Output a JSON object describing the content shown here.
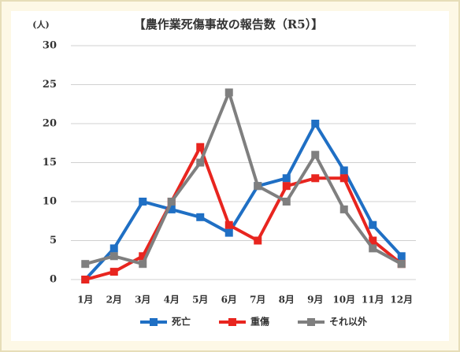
{
  "chart_data": {
    "type": "line",
    "title": "【農作業死傷事故の報告数（R5）】",
    "y_label": "(人)",
    "categories": [
      "1月",
      "2月",
      "3月",
      "4月",
      "5月",
      "6月",
      "7月",
      "8月",
      "9月",
      "10月",
      "11月",
      "12月"
    ],
    "series": [
      {
        "name": "死亡",
        "color": "#1f6fc4",
        "values": [
          0,
          4,
          10,
          9,
          8,
          6,
          12,
          13,
          20,
          14,
          7,
          3
        ]
      },
      {
        "name": "重傷",
        "color": "#e8251f",
        "values": [
          0,
          1,
          3,
          10,
          17,
          7,
          5,
          12,
          13,
          13,
          5,
          2
        ]
      },
      {
        "name": "それ以外",
        "color": "#7f7f7f",
        "values": [
          2,
          3,
          2,
          10,
          15,
          24,
          12,
          10,
          16,
          9,
          4,
          2
        ]
      }
    ],
    "ylim": [
      0,
      30
    ],
    "yticks": [
      0,
      5,
      10,
      15,
      20,
      25,
      30
    ],
    "grid": true,
    "legend": "bottom"
  }
}
